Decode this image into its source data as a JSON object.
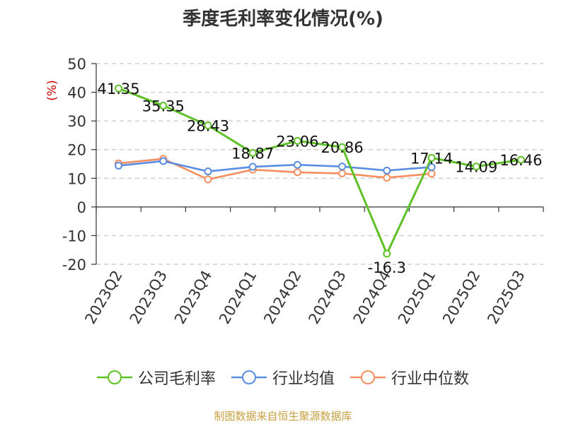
{
  "chart_data": {
    "type": "line",
    "title": "季度毛利率变化情况(%)",
    "ylabel": "(%)",
    "xlabel": "",
    "categories": [
      "2023Q2",
      "2023Q3",
      "2023Q4",
      "2024Q1",
      "2024Q2",
      "2024Q3",
      "2024Q4",
      "2025Q1",
      "2025Q2",
      "2025Q3"
    ],
    "yticks": [
      "50",
      "40",
      "30",
      "20",
      "10",
      "0",
      "-10",
      "-20"
    ],
    "ylim": [
      -20,
      50
    ],
    "grid": true,
    "legend_position": "bottom",
    "series": [
      {
        "name": "公司毛利率",
        "color": "#5ec226",
        "values": [
          41.35,
          35.35,
          28.43,
          18.87,
          23.06,
          20.86,
          -16.3,
          17.14,
          14.09,
          16.46
        ],
        "labels": [
          "41.35",
          "35.35",
          "28.43",
          "18.87",
          "23.06",
          "20.86",
          "-16.3",
          "17.14",
          "14.09",
          "16.46"
        ]
      },
      {
        "name": "行业均值",
        "color": "#5a8ee0",
        "values": [
          14.4,
          16.0,
          12.4,
          14.0,
          14.7,
          14.1,
          12.7,
          13.9,
          null,
          null
        ]
      },
      {
        "name": "行业中位数",
        "color": "#f58f5f",
        "values": [
          15.2,
          16.8,
          9.6,
          13.0,
          12.1,
          11.7,
          10.2,
          11.6,
          null,
          null
        ]
      }
    ]
  },
  "source": "制图数据来自恒生聚源数据库"
}
